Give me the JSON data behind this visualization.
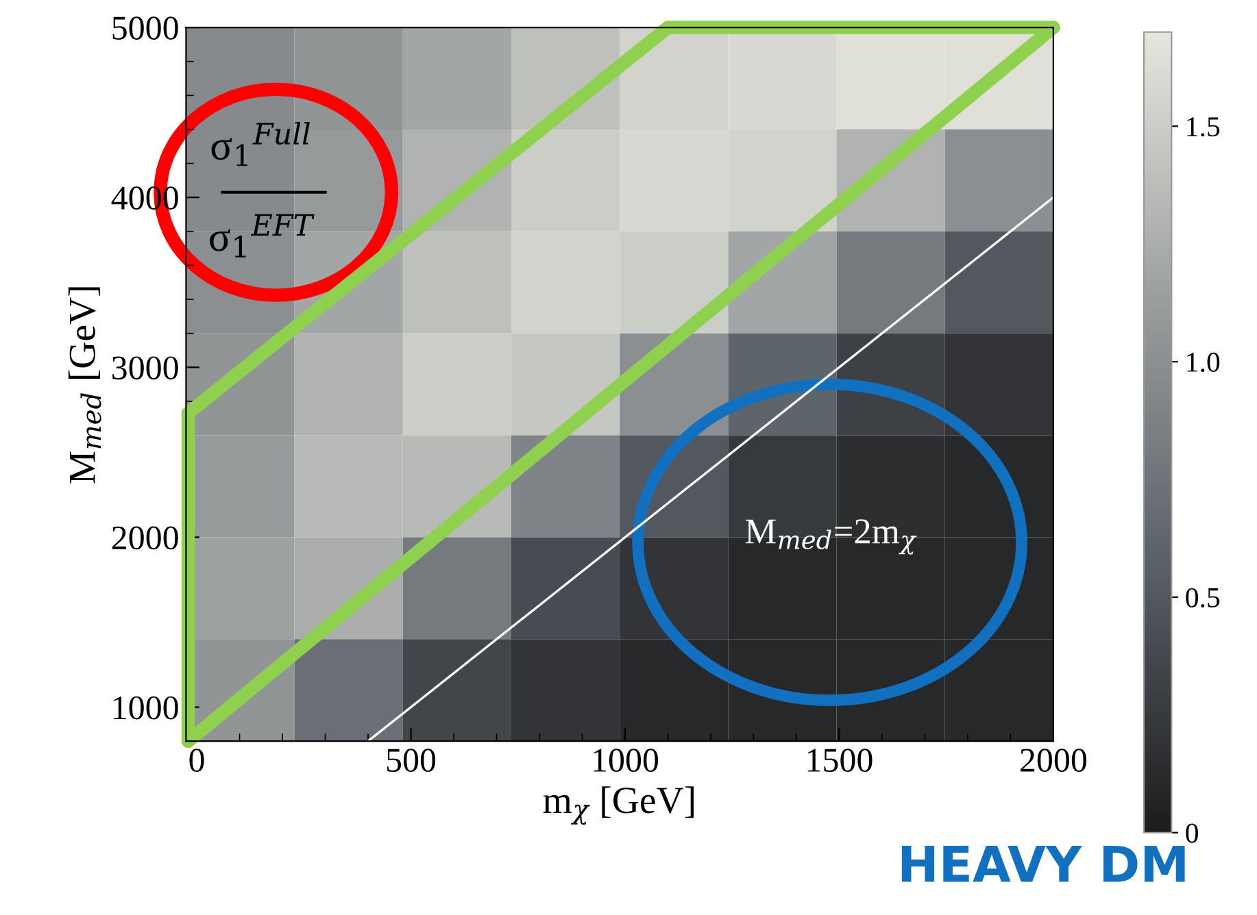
{
  "chart_data": {
    "type": "heatmap",
    "xlabel": "m$_{χ}$ [GeV]",
    "ylabel": "M$_{med}$ [GeV]",
    "xlim": [
      -25,
      2000
    ],
    "ylim": [
      800,
      5000
    ],
    "xticks": [
      0,
      500,
      1000,
      1500,
      2000
    ],
    "yticks": [
      1000,
      2000,
      3000,
      4000,
      5000
    ],
    "cells": [
      [
        0.95,
        1.05,
        1.2,
        1.4,
        1.55,
        1.6,
        1.65,
        1.65
      ],
      [
        0.95,
        1.1,
        1.3,
        1.5,
        1.6,
        1.55,
        1.3,
        1.0
      ],
      [
        1.0,
        1.2,
        1.4,
        1.55,
        1.5,
        1.2,
        0.8,
        0.5
      ],
      [
        1.05,
        1.3,
        1.5,
        1.45,
        1.0,
        0.6,
        0.3,
        0.2
      ],
      [
        1.1,
        1.35,
        1.35,
        0.9,
        0.5,
        0.25,
        0.15,
        0.1
      ],
      [
        1.15,
        1.25,
        0.8,
        0.4,
        0.2,
        0.1,
        0.1,
        0.1
      ],
      [
        1.05,
        0.7,
        0.35,
        0.2,
        0.1,
        0.1,
        0.1,
        0.1
      ]
    ],
    "clim": [
      0,
      1.7
    ],
    "cticks": [
      0,
      {
        "value": 0.5,
        "label": "0.5"
      },
      {
        "value": 1,
        "label": "1.0"
      },
      1.5
    ],
    "series": [
      {
        "type": "line",
        "x": [
          400,
          2000
        ],
        "values": [
          800,
          4000
        ],
        "color": "#ffffff"
      },
      {
        "type": "line",
        "x": [
          -20,
          -20,
          1100,
          2000
        ],
        "values": [
          800,
          2730,
          5000,
          5000
        ],
        "color": "#8fd14f"
      },
      {
        "type": "line",
        "x": [
          -20,
          2000
        ],
        "values": [
          800,
          5000
        ],
        "color": "#8fd14f"
      }
    ],
    "annotations": [
      "σ$_{1}$$^{Full}$",
      "σ$_{1}$$^{EFT}$",
      "M$_{med}$=2m$_{χ}$",
      "HEAVY DM"
    ],
    "grid": false
  }
}
